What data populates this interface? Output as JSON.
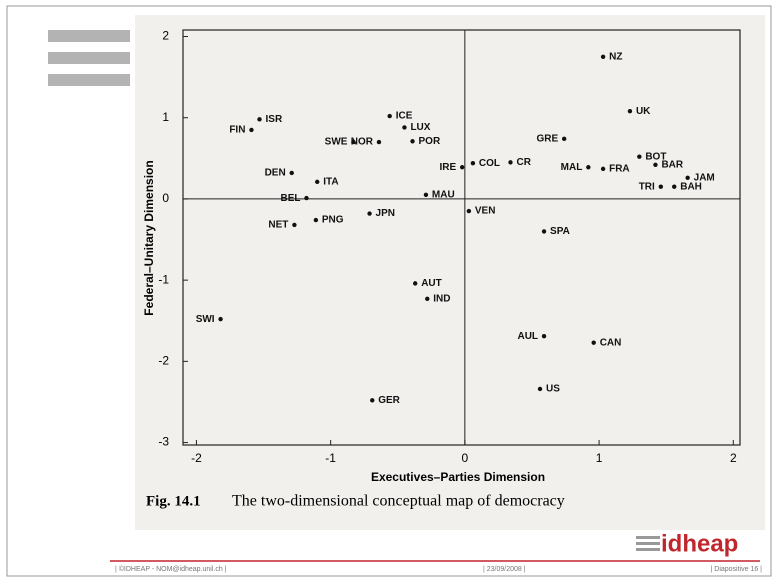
{
  "chart_data": {
    "type": "scatter",
    "x_label": "Executives–Parties Dimension",
    "y_label": "Federal–Unitary Dimension",
    "caption_num": "Fig. 14.1",
    "caption": "The two-dimensional conceptual map of democracy",
    "xlim": [
      -2.1,
      2.05
    ],
    "ylim": [
      -3.03,
      2.08
    ],
    "xticks": [
      -2,
      -1,
      0,
      1,
      2
    ],
    "yticks": [
      -3,
      -2,
      -1,
      0,
      1,
      2
    ],
    "color": "#111111",
    "labels": [
      "NZ",
      "UK",
      "GRE",
      "BOT",
      "BAR",
      "JAM",
      "BAH",
      "TRI",
      "MAL",
      "FRA",
      "CR",
      "COL",
      "IRE",
      "MAU",
      "ICE",
      "LUX",
      "POR",
      "NOR",
      "SWE",
      "ISR",
      "FIN",
      "DEN",
      "ITA",
      "BEL",
      "JPN",
      "PNG",
      "NET",
      "VEN",
      "SPA",
      "AUT",
      "IND",
      "SWI",
      "AUL",
      "CAN",
      "US",
      "GER"
    ],
    "x": [
      1.03,
      1.23,
      0.74,
      1.3,
      1.42,
      1.66,
      1.56,
      1.46,
      0.92,
      1.03,
      0.34,
      0.06,
      -0.02,
      -0.29,
      -0.56,
      -0.45,
      -0.39,
      -0.64,
      -0.83,
      -1.53,
      -1.59,
      -1.29,
      -1.1,
      -1.18,
      -0.71,
      -1.11,
      -1.27,
      0.03,
      0.59,
      -0.37,
      -0.28,
      -1.82,
      0.59,
      0.96,
      0.56,
      -0.69
    ],
    "y": [
      1.75,
      1.08,
      0.74,
      0.52,
      0.42,
      0.26,
      0.15,
      0.15,
      0.39,
      0.37,
      0.45,
      0.44,
      0.39,
      0.05,
      1.02,
      0.88,
      0.71,
      0.7,
      0.7,
      0.98,
      0.85,
      0.32,
      0.21,
      0.01,
      -0.18,
      -0.26,
      -0.32,
      -0.15,
      -0.4,
      -1.04,
      -1.23,
      -1.48,
      -1.69,
      -1.77,
      -2.34,
      -2.48
    ]
  },
  "footer": {
    "left": "| ©IDHEAP - NOM@idheap.unil.ch |",
    "center": "| 23/09/2008 |",
    "right": "| Diapositive 16 |",
    "logo": "idheap"
  }
}
